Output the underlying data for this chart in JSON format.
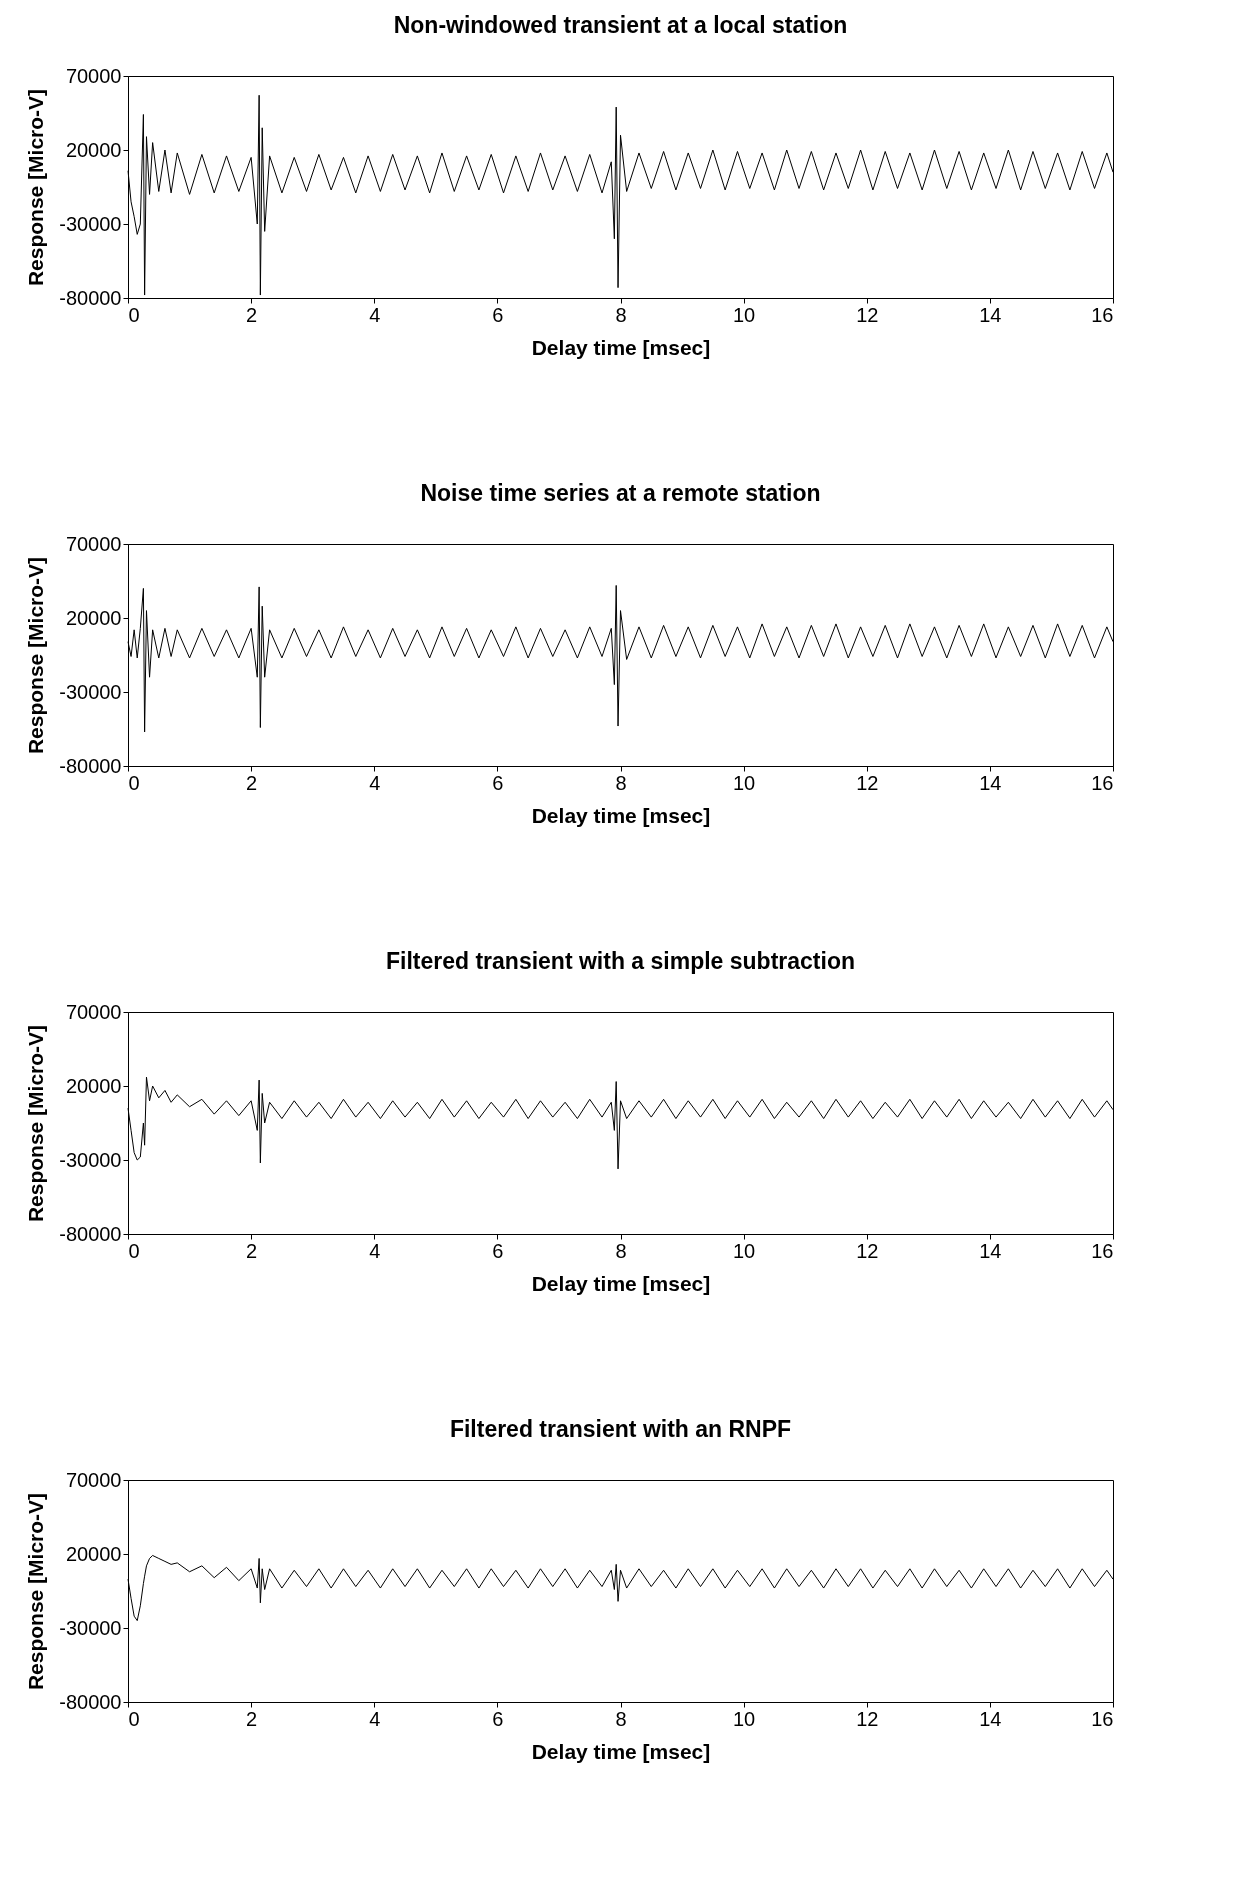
{
  "chart_data": [
    {
      "type": "line",
      "title": "Non-windowed transient at a local station",
      "xlabel": "Delay time [msec]",
      "ylabel": "Response [Micro-V]",
      "color": "#000000",
      "xlim": [
        0,
        16
      ],
      "xticks": [
        0,
        2,
        4,
        6,
        8,
        10,
        12,
        14,
        16
      ],
      "ylim": [
        -80000,
        70000
      ],
      "yticks": [
        -80000,
        -30000,
        20000,
        70000
      ],
      "x": [
        0,
        0.05,
        0.1,
        0.15,
        0.2,
        0.25,
        0.27,
        0.3,
        0.35,
        0.4,
        0.5,
        0.6,
        0.7,
        0.8,
        1.0,
        1.2,
        1.4,
        1.6,
        1.8,
        2.0,
        2.1,
        2.13,
        2.15,
        2.18,
        2.22,
        2.3,
        2.5,
        2.7,
        2.9,
        3.1,
        3.3,
        3.5,
        3.7,
        3.9,
        4.1,
        4.3,
        4.5,
        4.7,
        4.9,
        5.1,
        5.3,
        5.5,
        5.7,
        5.9,
        6.1,
        6.3,
        6.5,
        6.7,
        6.9,
        7.1,
        7.3,
        7.5,
        7.7,
        7.85,
        7.9,
        7.93,
        7.96,
        8.0,
        8.1,
        8.3,
        8.5,
        8.7,
        8.9,
        9.1,
        9.3,
        9.5,
        9.7,
        9.9,
        10.1,
        10.3,
        10.5,
        10.7,
        10.9,
        11.1,
        11.3,
        11.5,
        11.7,
        11.9,
        12.1,
        12.3,
        12.5,
        12.7,
        12.9,
        13.1,
        13.3,
        13.5,
        13.7,
        13.9,
        14.1,
        14.3,
        14.5,
        14.7,
        14.9,
        15.1,
        15.3,
        15.5,
        15.7,
        15.9,
        16
      ],
      "values": [
        6000,
        -15000,
        -25000,
        -37000,
        -30000,
        44000,
        -78000,
        29000,
        -10000,
        25000,
        -8000,
        20000,
        -9000,
        18000,
        -10000,
        17000,
        -9000,
        16000,
        -8000,
        15000,
        -30000,
        57000,
        -78000,
        35000,
        -35000,
        16000,
        -9000,
        15000,
        -8000,
        17000,
        -7000,
        15000,
        -9000,
        16000,
        -8000,
        17000,
        -7000,
        16000,
        -9000,
        18000,
        -8000,
        16000,
        -7000,
        17000,
        -9000,
        16000,
        -8000,
        18000,
        -7000,
        16000,
        -8000,
        17000,
        -9000,
        12000,
        -40000,
        49000,
        -73000,
        30000,
        -8000,
        18000,
        -6000,
        19000,
        -7000,
        18000,
        -6000,
        20000,
        -7000,
        19000,
        -6000,
        18000,
        -7000,
        20000,
        -6000,
        19000,
        -7000,
        18000,
        -6000,
        20000,
        -7000,
        19000,
        -6000,
        18000,
        -7000,
        20000,
        -6000,
        19000,
        -7000,
        18000,
        -6000,
        20000,
        -7000,
        19000,
        -6000,
        18000,
        -7000,
        19000,
        -6000,
        18000,
        5000
      ]
    },
    {
      "type": "line",
      "title": "Noise time series at a remote station",
      "xlabel": "Delay time [msec]",
      "ylabel": "Response [Micro-V]",
      "color": "#000000",
      "xlim": [
        0,
        16
      ],
      "xticks": [
        0,
        2,
        4,
        6,
        8,
        10,
        12,
        14,
        16
      ],
      "ylim": [
        -80000,
        70000
      ],
      "yticks": [
        -80000,
        -30000,
        20000,
        70000
      ],
      "x": [
        0,
        0.05,
        0.1,
        0.15,
        0.2,
        0.25,
        0.27,
        0.3,
        0.35,
        0.4,
        0.5,
        0.6,
        0.7,
        0.8,
        1.0,
        1.2,
        1.4,
        1.6,
        1.8,
        2.0,
        2.1,
        2.13,
        2.15,
        2.18,
        2.22,
        2.3,
        2.5,
        2.7,
        2.9,
        3.1,
        3.3,
        3.5,
        3.7,
        3.9,
        4.1,
        4.3,
        4.5,
        4.7,
        4.9,
        5.1,
        5.3,
        5.5,
        5.7,
        5.9,
        6.1,
        6.3,
        6.5,
        6.7,
        6.9,
        7.1,
        7.3,
        7.5,
        7.7,
        7.85,
        7.9,
        7.93,
        7.96,
        8.0,
        8.1,
        8.3,
        8.5,
        8.7,
        8.9,
        9.1,
        9.3,
        9.5,
        9.7,
        9.9,
        10.1,
        10.3,
        10.5,
        10.7,
        10.9,
        11.1,
        11.3,
        11.5,
        11.7,
        11.9,
        12.1,
        12.3,
        12.5,
        12.7,
        12.9,
        13.1,
        13.3,
        13.5,
        13.7,
        13.9,
        14.1,
        14.3,
        14.5,
        14.7,
        14.9,
        15.1,
        15.3,
        15.5,
        15.7,
        15.9,
        16
      ],
      "values": [
        4000,
        -6000,
        12000,
        -7000,
        13000,
        40000,
        -57000,
        25000,
        -20000,
        12000,
        -7000,
        13000,
        -6000,
        12000,
        -7000,
        13000,
        -6000,
        12000,
        -7000,
        13000,
        -20000,
        41000,
        -54000,
        28000,
        -20000,
        12000,
        -7000,
        13000,
        -6000,
        12000,
        -7000,
        14000,
        -6000,
        12000,
        -7000,
        13000,
        -6000,
        12000,
        -7000,
        14000,
        -6000,
        13000,
        -7000,
        12000,
        -6000,
        14000,
        -7000,
        13000,
        -6000,
        12000,
        -7000,
        14000,
        -6000,
        13000,
        -25000,
        42000,
        -53000,
        25000,
        -8000,
        14000,
        -7000,
        15000,
        -6000,
        14000,
        -7000,
        15000,
        -6000,
        14000,
        -7000,
        16000,
        -6000,
        14000,
        -7000,
        15000,
        -6000,
        16000,
        -7000,
        14000,
        -6000,
        15000,
        -7000,
        16000,
        -6000,
        14000,
        -7000,
        15000,
        -6000,
        16000,
        -7000,
        14000,
        -6000,
        15000,
        -7000,
        16000,
        -6000,
        15000,
        -7000,
        14000,
        4000
      ]
    },
    {
      "type": "line",
      "title": "Filtered transient with a simple subtraction",
      "xlabel": "Delay time [msec]",
      "ylabel": "Response [Micro-V]",
      "color": "#000000",
      "xlim": [
        0,
        16
      ],
      "xticks": [
        0,
        2,
        4,
        6,
        8,
        10,
        12,
        14,
        16
      ],
      "ylim": [
        -80000,
        70000
      ],
      "yticks": [
        -80000,
        -30000,
        20000,
        70000
      ],
      "x": [
        0,
        0.05,
        0.1,
        0.15,
        0.2,
        0.25,
        0.27,
        0.3,
        0.35,
        0.4,
        0.5,
        0.6,
        0.7,
        0.8,
        1.0,
        1.2,
        1.4,
        1.6,
        1.8,
        2.0,
        2.1,
        2.13,
        2.15,
        2.18,
        2.22,
        2.3,
        2.5,
        2.7,
        2.9,
        3.1,
        3.3,
        3.5,
        3.7,
        3.9,
        4.1,
        4.3,
        4.5,
        4.7,
        4.9,
        5.1,
        5.3,
        5.5,
        5.7,
        5.9,
        6.1,
        6.3,
        6.5,
        6.7,
        6.9,
        7.1,
        7.3,
        7.5,
        7.7,
        7.85,
        7.9,
        7.93,
        7.96,
        8.0,
        8.1,
        8.3,
        8.5,
        8.7,
        8.9,
        9.1,
        9.3,
        9.5,
        9.7,
        9.9,
        10.1,
        10.3,
        10.5,
        10.7,
        10.9,
        11.1,
        11.3,
        11.5,
        11.7,
        11.9,
        12.1,
        12.3,
        12.5,
        12.7,
        12.9,
        13.1,
        13.3,
        13.5,
        13.7,
        13.9,
        14.1,
        14.3,
        14.5,
        14.7,
        14.9,
        15.1,
        15.3,
        15.5,
        15.7,
        15.9,
        16
      ],
      "values": [
        5000,
        -10000,
        -25000,
        -30000,
        -28000,
        -5000,
        -20000,
        26000,
        10000,
        20000,
        12000,
        17000,
        9000,
        14000,
        6000,
        11000,
        1000,
        10000,
        0,
        10000,
        -10000,
        24000,
        -32000,
        15000,
        -5000,
        9000,
        -2000,
        10000,
        -1000,
        9000,
        -2000,
        11000,
        -1000,
        9000,
        -2000,
        10000,
        -1000,
        9000,
        -2000,
        11000,
        -1000,
        10000,
        -2000,
        9000,
        -1000,
        11000,
        -2000,
        10000,
        -1000,
        9000,
        -2000,
        11000,
        -1000,
        9000,
        -10000,
        23000,
        -36000,
        10000,
        -2000,
        10000,
        -1000,
        11000,
        -2000,
        10000,
        -1000,
        11000,
        -2000,
        10000,
        -1000,
        11000,
        -2000,
        9000,
        -1000,
        10000,
        -2000,
        11000,
        -1000,
        10000,
        -2000,
        9000,
        -1000,
        11000,
        -2000,
        10000,
        -1000,
        11000,
        -2000,
        10000,
        -1000,
        9000,
        -2000,
        11000,
        -1000,
        10000,
        -2000,
        11000,
        -1000,
        10000,
        4000
      ]
    },
    {
      "type": "line",
      "title": "Filtered transient with an RNPF",
      "xlabel": "Delay time [msec]",
      "ylabel": "Response [Micro-V]",
      "color": "#000000",
      "xlim": [
        0,
        16
      ],
      "xticks": [
        0,
        2,
        4,
        6,
        8,
        10,
        12,
        14,
        16
      ],
      "ylim": [
        -80000,
        70000
      ],
      "yticks": [
        -80000,
        -30000,
        20000,
        70000
      ],
      "x": [
        0,
        0.05,
        0.1,
        0.15,
        0.2,
        0.25,
        0.27,
        0.3,
        0.35,
        0.4,
        0.5,
        0.6,
        0.7,
        0.8,
        1.0,
        1.2,
        1.4,
        1.6,
        1.8,
        2.0,
        2.1,
        2.13,
        2.15,
        2.18,
        2.22,
        2.3,
        2.5,
        2.7,
        2.9,
        3.1,
        3.3,
        3.5,
        3.7,
        3.9,
        4.1,
        4.3,
        4.5,
        4.7,
        4.9,
        5.1,
        5.3,
        5.5,
        5.7,
        5.9,
        6.1,
        6.3,
        6.5,
        6.7,
        6.9,
        7.1,
        7.3,
        7.5,
        7.7,
        7.85,
        7.9,
        7.93,
        7.96,
        8.0,
        8.1,
        8.3,
        8.5,
        8.7,
        8.9,
        9.1,
        9.3,
        9.5,
        9.7,
        9.9,
        10.1,
        10.3,
        10.5,
        10.7,
        10.9,
        11.1,
        11.3,
        11.5,
        11.7,
        11.9,
        12.1,
        12.3,
        12.5,
        12.7,
        12.9,
        13.1,
        13.3,
        13.5,
        13.7,
        13.9,
        14.1,
        14.3,
        14.5,
        14.7,
        14.9,
        15.1,
        15.3,
        15.5,
        15.7,
        15.9,
        16
      ],
      "values": [
        3000,
        -10000,
        -22000,
        -25000,
        -15000,
        0,
        5000,
        12000,
        17000,
        19000,
        17000,
        15000,
        13000,
        14000,
        8000,
        12000,
        4000,
        11000,
        2000,
        10000,
        -3000,
        17000,
        -13000,
        10000,
        -4000,
        10000,
        -3000,
        9000,
        -2000,
        10000,
        -3000,
        10000,
        -2000,
        9000,
        -3000,
        10000,
        -2000,
        10000,
        -3000,
        9000,
        -2000,
        10000,
        -3000,
        10000,
        -2000,
        9000,
        -3000,
        10000,
        -2000,
        10000,
        -3000,
        9000,
        -2000,
        9000,
        -4000,
        13000,
        -12000,
        9000,
        -3000,
        10000,
        -2000,
        9000,
        -3000,
        10000,
        -2000,
        10000,
        -3000,
        9000,
        -2000,
        10000,
        -3000,
        10000,
        -2000,
        9000,
        -3000,
        10000,
        -2000,
        10000,
        -3000,
        9000,
        -2000,
        10000,
        -3000,
        10000,
        -2000,
        9000,
        -3000,
        10000,
        -2000,
        10000,
        -3000,
        9000,
        -2000,
        10000,
        -3000,
        10000,
        -2000,
        9000,
        3000
      ]
    }
  ]
}
